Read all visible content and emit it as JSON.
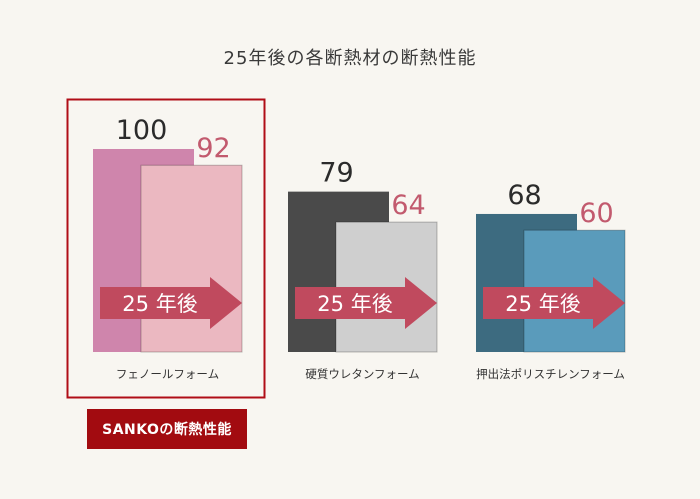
{
  "title": "25年後の各断熱材の断熱性能",
  "badge": "SANKOの断熱性能",
  "arrow_label": "25 年後",
  "colors": {
    "highlight_border": "#b00d17",
    "badge_bg": "#a20b10",
    "arrow": "#c04a5e",
    "initial_label": "#2b2b2b"
  },
  "chart_data": {
    "type": "bar",
    "title": "25年後の各断熱材の断熱性能",
    "categories": [
      "フェノールフォーム",
      "硬質ウレタンフォーム",
      "押出法ポリスチレンフォーム"
    ],
    "series": [
      {
        "values": [
          100,
          79,
          68
        ]
      },
      {
        "values": [
          92,
          64,
          60
        ]
      }
    ],
    "highlighted_category": "フェノールフォーム",
    "bar_colors": {
      "initial": [
        "#cf85ac",
        "#4a4a4a",
        "#3d6b80"
      ],
      "after": [
        "#ebb8c1",
        "#cfcfcf",
        "#5a9bbb"
      ],
      "after_label": [
        "#c25a6e",
        "#c25a6e",
        "#c25a6e"
      ]
    },
    "grid": false,
    "legend": "none"
  }
}
